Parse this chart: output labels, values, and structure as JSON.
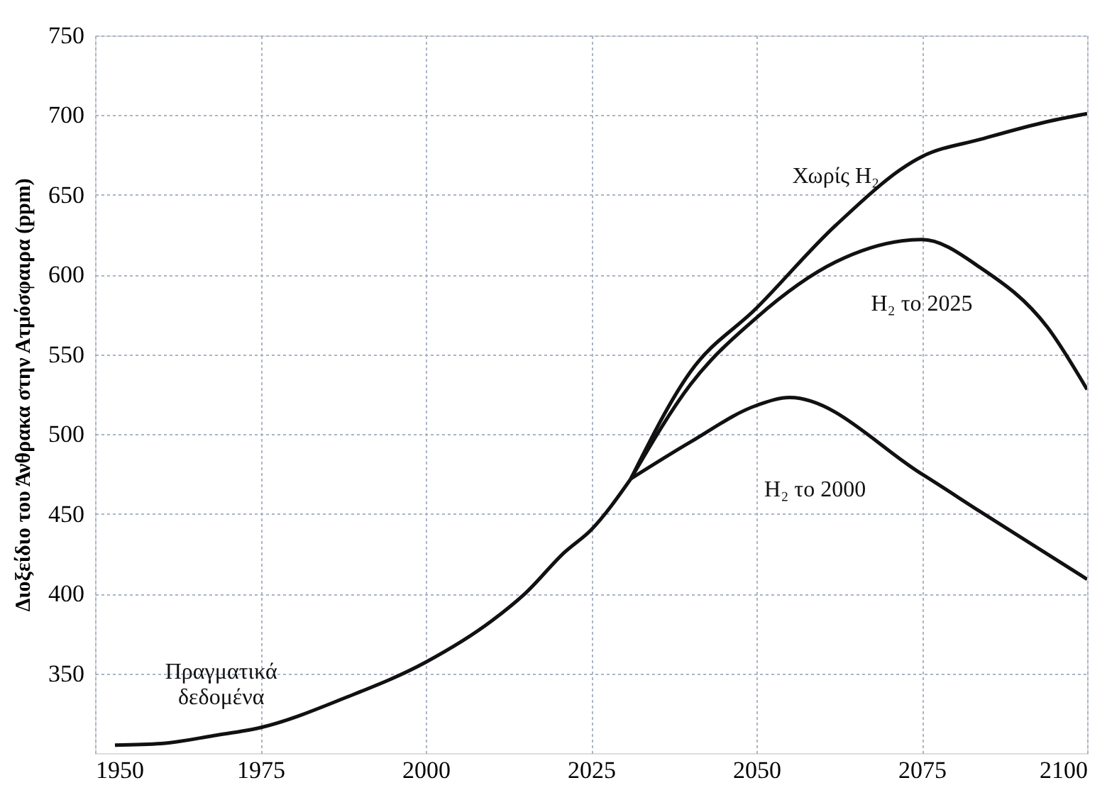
{
  "chart_data": {
    "type": "line",
    "ylabel": "Διοξείδιο του Άνθρακα στην Ατμόσφαιρα (ppm)",
    "xlim": [
      1950,
      2100
    ],
    "xticks": [
      1950,
      1975,
      2000,
      2025,
      2050,
      2075,
      2100
    ],
    "ylim": [
      300,
      750
    ],
    "yticks": [
      350,
      400,
      450,
      500,
      550,
      600,
      650,
      700,
      750
    ],
    "grid": true,
    "legend": false,
    "marker": "none",
    "line_style": "solid",
    "series": [
      {
        "name": "Πραγματικά\nδεδομένα",
        "color": "#111111",
        "x": [
          1953,
          1960,
          1968,
          1975,
          1988,
          2000,
          2010,
          2015,
          2021,
          2025,
          2031
        ],
        "values": [
          305,
          306,
          311,
          316,
          335,
          357,
          383,
          400,
          426,
          440,
          472
        ]
      },
      {
        "name": "Χωρίς H₂",
        "color": "#111111",
        "x": [
          2031,
          2040,
          2050,
          2062,
          2075,
          2084,
          2094,
          2100
        ],
        "values": [
          472,
          539,
          579,
          631,
          674,
          685,
          696,
          701
        ]
      },
      {
        "name": "H₂ το 2025",
        "color": "#111111",
        "x": [
          2031,
          2040,
          2050,
          2062,
          2075,
          2084,
          2094,
          2100
        ],
        "values": [
          472,
          531,
          573,
          608,
          622,
          604,
          567,
          528
        ]
      },
      {
        "name": "H₂ το 2000",
        "color": "#111111",
        "x": [
          2031,
          2040,
          2050,
          2055,
          2075,
          2084,
          2100
        ],
        "values": [
          472,
          495,
          518,
          523,
          475,
          451,
          409
        ]
      }
    ]
  }
}
